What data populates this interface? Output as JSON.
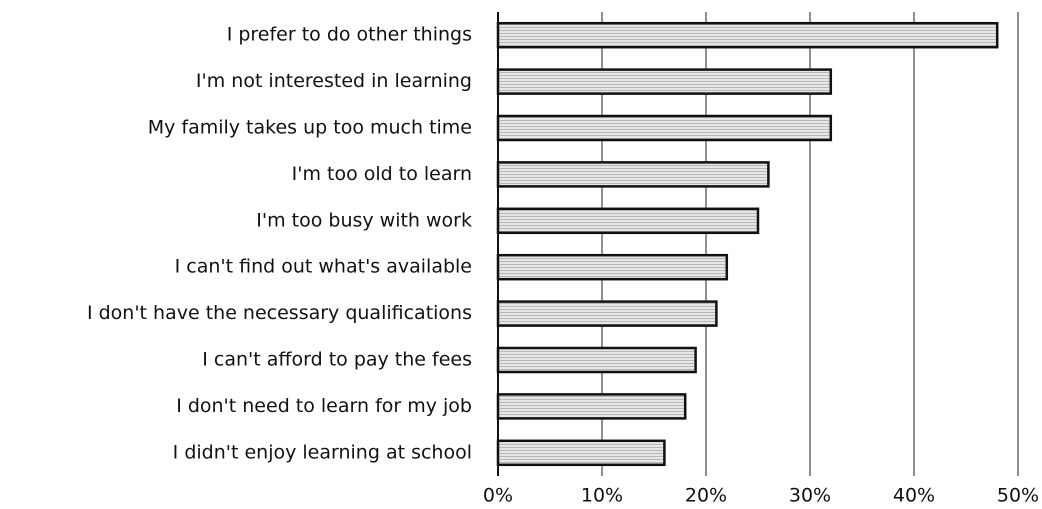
{
  "chart_data": {
    "type": "bar",
    "orientation": "horizontal",
    "categories": [
      "I prefer to do other things",
      "I'm not interested in learning",
      "My family takes up too much time",
      "I'm too old to learn",
      "I'm too busy with work",
      "I can't find out what's available",
      "I don't have the necessary qualifications",
      "I can't afford to pay the fees",
      "I don't need to learn for my job",
      "I didn't enjoy learning at school"
    ],
    "values": [
      48,
      32,
      32,
      26,
      25,
      22,
      21,
      19,
      18,
      16
    ],
    "color": "#dcdcdc",
    "xlim": [
      0,
      50
    ],
    "xticks": [
      {
        "value": 0,
        "label": "0%"
      },
      {
        "value": 10,
        "label": "10%"
      },
      {
        "value": 20,
        "label": "20%"
      },
      {
        "value": 30,
        "label": "30%"
      },
      {
        "value": 40,
        "label": "40%"
      },
      {
        "value": 50,
        "label": "50%"
      }
    ],
    "grid": true
  }
}
